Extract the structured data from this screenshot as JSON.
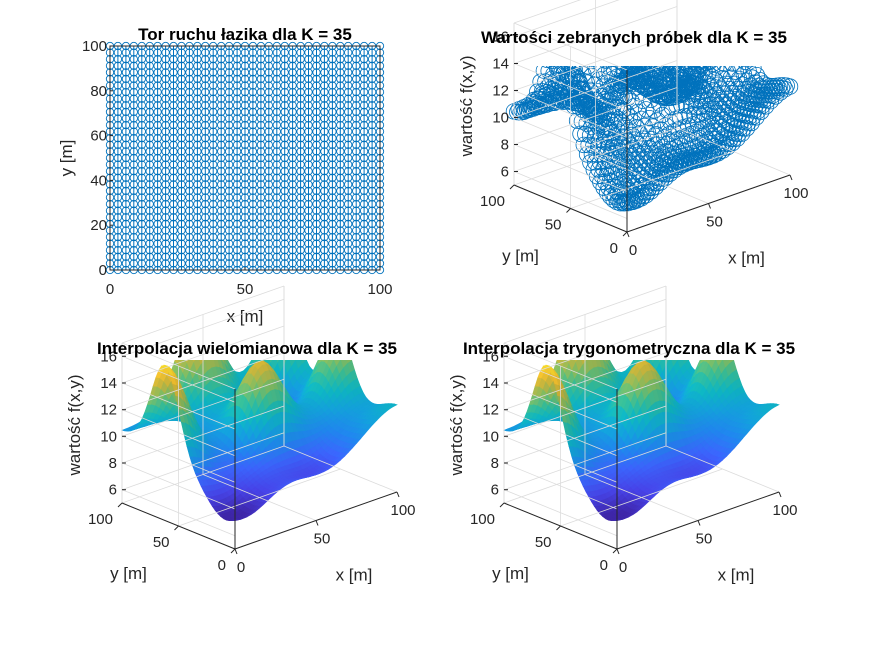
{
  "colors": {
    "marker": "#0072BD",
    "axis": "#262626",
    "grid": "#dcdcdc",
    "parula": [
      "#3E26A8",
      "#4743E7",
      "#3B64FB",
      "#2085EC",
      "#13A0D9",
      "#0EB4C0",
      "#36BA95",
      "#7EBA62",
      "#C2B23D",
      "#F3C02E",
      "#F9E12A"
    ]
  },
  "chart_data": [
    {
      "id": "path",
      "type": "scatter",
      "title": "Tor ruchu łazika dla K = 35",
      "xlabel": "x [m]",
      "ylabel": "y [m]",
      "xlim": [
        0,
        100
      ],
      "ylim": [
        0,
        100
      ],
      "xticks": [
        "0",
        "50",
        "100"
      ],
      "yticks": [
        "0",
        "20",
        "40",
        "60",
        "80",
        "100"
      ],
      "grid": false,
      "marker": "o",
      "K": 35,
      "pattern": "serpentine (boustrophedon) sweep, K columns x K rows, x from 0 to 100 and y from 0 to 100"
    },
    {
      "id": "samples",
      "type": "scatter",
      "title": "Wartości zebranych próbek dla K = 35",
      "xlabel": "x [m]",
      "ylabel": "y [m]",
      "zlabel": "wartość f(x,y)",
      "xlim": [
        0,
        100
      ],
      "ylim": [
        0,
        100
      ],
      "zlim": [
        5,
        17
      ],
      "xticks": [
        "0",
        "50",
        "100"
      ],
      "yticks": [
        "0",
        "50",
        "100"
      ],
      "zticks": [
        "6",
        "8",
        "10",
        "12",
        "14",
        "16"
      ],
      "grid": true,
      "marker": "o",
      "K": 35,
      "z_range_of_data": [
        6.9,
        16.6
      ]
    },
    {
      "id": "poly",
      "type": "surface",
      "title": "Interpolacja wielomianowa dla K = 35",
      "xlabel": "x [m]",
      "ylabel": "y [m]",
      "zlabel": "wartość f(x,y)",
      "xlim": [
        0,
        100
      ],
      "ylim": [
        0,
        100
      ],
      "zlim": [
        5,
        17
      ],
      "xticks": [
        "0",
        "50",
        "100"
      ],
      "yticks": [
        "0",
        "50",
        "100"
      ],
      "zticks": [
        "6",
        "8",
        "10",
        "12",
        "14",
        "16"
      ],
      "grid": true,
      "colormap": "parula",
      "z_range_of_data": [
        6.9,
        16.6
      ]
    },
    {
      "id": "trig",
      "type": "surface",
      "title": "Interpolacja trygonometryczna dla K = 35",
      "xlabel": "x [m]",
      "ylabel": "y [m]",
      "zlabel": "wartość f(x,y)",
      "xlim": [
        0,
        100
      ],
      "ylim": [
        0,
        100
      ],
      "zlim": [
        5,
        17
      ],
      "xticks": [
        "0",
        "50",
        "100"
      ],
      "yticks": [
        "0",
        "50",
        "100"
      ],
      "zticks": [
        "6",
        "8",
        "10",
        "12",
        "14",
        "16"
      ],
      "grid": true,
      "colormap": "parula",
      "z_range_of_data": [
        6.9,
        16.6
      ]
    }
  ]
}
